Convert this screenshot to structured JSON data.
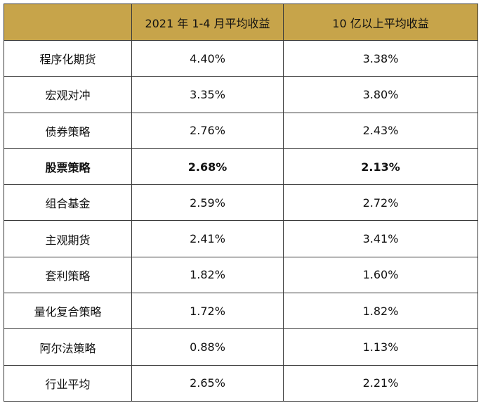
{
  "table": {
    "header": [
      "2021 年 1-4 月平均收益",
      "10 亿以上平均收益"
    ],
    "rows": [
      [
        "程序化期货",
        "4.40%",
        "3.38%"
      ],
      [
        "宏观对冲",
        "3.35%",
        "3.80%"
      ],
      [
        "债券策略",
        "2.76%",
        "2.43%"
      ],
      [
        "股票策略",
        "2.68%",
        "2.13%"
      ],
      [
        "组合基金",
        "2.59%",
        "2.72%"
      ],
      [
        "主观期货",
        "2.41%",
        "3.41%"
      ],
      [
        "套利策略",
        "1.82%",
        "1.60%"
      ],
      [
        "量化复合策略",
        "1.72%",
        "1.82%"
      ],
      [
        "阿尔法策略",
        "0.88%",
        "1.13%"
      ],
      [
        "行业平均",
        "2.65%",
        "2.21%"
      ]
    ]
  }
}
